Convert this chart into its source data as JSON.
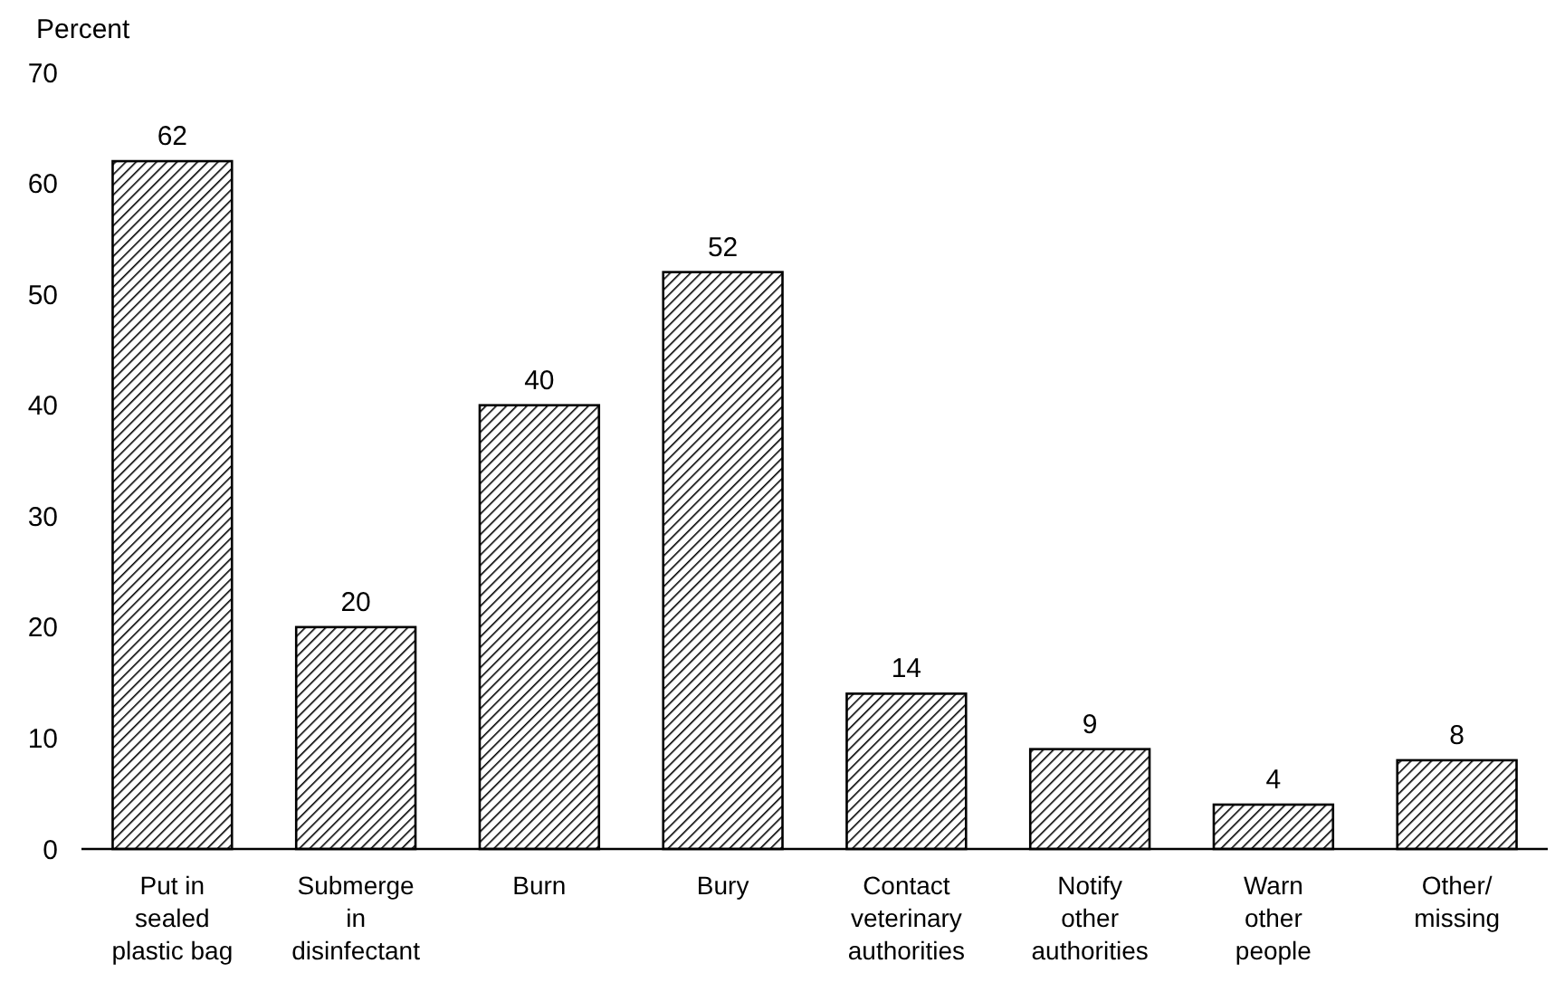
{
  "chart_data": {
    "type": "bar",
    "ylabel": "Percent",
    "categories": [
      "Put in\nsealed\nplastic bag",
      "Submerge\nin\ndisinfectant",
      "Burn",
      "Bury",
      "Contact\nveterinary\nauthorities",
      "Notify\nother\nauthorities",
      "Warn\nother\npeople",
      "Other/\nmissing"
    ],
    "values": [
      62,
      20,
      40,
      52,
      14,
      9,
      4,
      8
    ],
    "color": "#000000",
    "ylim": [
      0,
      70
    ],
    "yticks": [
      0,
      10,
      20,
      30,
      40,
      50,
      60,
      70
    ],
    "data_labels": true,
    "grid": false
  }
}
